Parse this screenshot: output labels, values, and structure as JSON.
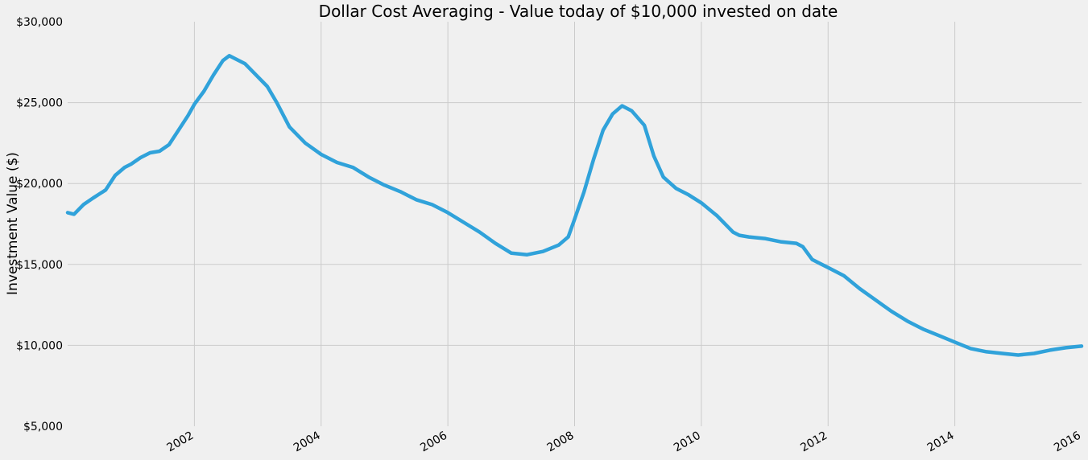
{
  "chart_data": {
    "type": "line",
    "title": "Dollar Cost Averaging - Value today of $10,000 invested on date",
    "xlabel": "",
    "ylabel": "Investment Value ($)",
    "xlim": [
      2000.0,
      2016.0
    ],
    "ylim": [
      5000,
      30000
    ],
    "x_ticks": [
      2002,
      2004,
      2006,
      2008,
      2010,
      2012,
      2014,
      2016
    ],
    "x_tick_labels": [
      "2002",
      "2004",
      "2006",
      "2008",
      "2010",
      "2012",
      "2014",
      "2016"
    ],
    "y_ticks": [
      5000,
      10000,
      15000,
      20000,
      25000,
      30000
    ],
    "y_tick_labels": [
      "$5,000",
      "$10,000",
      "$15,000",
      "$20,000",
      "$25,000",
      "$30,000"
    ],
    "grid": true,
    "color": "#30a2da",
    "series": [
      {
        "name": "Investment Value",
        "x": [
          2000.0,
          2000.1,
          2000.25,
          2000.4,
          2000.6,
          2000.75,
          2000.9,
          2001.0,
          2001.15,
          2001.3,
          2001.45,
          2001.6,
          2001.75,
          2001.9,
          2002.0,
          2002.15,
          2002.3,
          2002.45,
          2002.55,
          2002.65,
          2002.8,
          2003.0,
          2003.15,
          2003.3,
          2003.5,
          2003.75,
          2004.0,
          2004.25,
          2004.5,
          2004.75,
          2005.0,
          2005.25,
          2005.5,
          2005.75,
          2006.0,
          2006.25,
          2006.5,
          2006.75,
          2007.0,
          2007.25,
          2007.5,
          2007.75,
          2007.9,
          2008.0,
          2008.15,
          2008.3,
          2008.45,
          2008.6,
          2008.75,
          2008.9,
          2009.1,
          2009.25,
          2009.4,
          2009.6,
          2009.8,
          2010.0,
          2010.25,
          2010.5,
          2010.6,
          2010.75,
          2011.0,
          2011.25,
          2011.5,
          2011.6,
          2011.75,
          2012.0,
          2012.25,
          2012.5,
          2012.75,
          2013.0,
          2013.25,
          2013.5,
          2013.75,
          2014.0,
          2014.25,
          2014.5,
          2014.75,
          2015.0,
          2015.25,
          2015.5,
          2015.75,
          2016.0
        ],
        "values": [
          18200,
          18100,
          18700,
          19100,
          19600,
          20500,
          21000,
          21200,
          21600,
          21900,
          22000,
          22400,
          23300,
          24200,
          24900,
          25700,
          26700,
          27600,
          27900,
          27700,
          27400,
          26600,
          26000,
          25000,
          23500,
          22500,
          21800,
          21300,
          21000,
          20400,
          19900,
          19500,
          19000,
          18700,
          18200,
          17600,
          17000,
          16300,
          15700,
          15600,
          15800,
          16200,
          16700,
          17800,
          19500,
          21500,
          23300,
          24300,
          24800,
          24500,
          23600,
          21700,
          20400,
          19700,
          19300,
          18800,
          18000,
          17000,
          16800,
          16700,
          16600,
          16400,
          16300,
          16100,
          15300,
          14800,
          14300,
          13500,
          12800,
          12100,
          11500,
          11000,
          10600,
          10200,
          9800,
          9600,
          9500,
          9400,
          9500,
          9700,
          9850,
          9950
        ]
      }
    ]
  }
}
